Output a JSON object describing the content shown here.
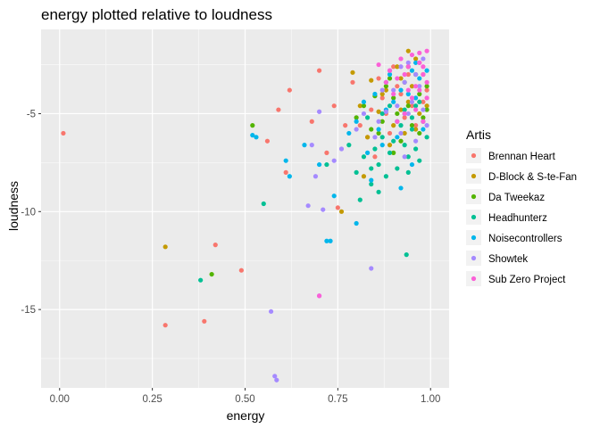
{
  "chart_data": {
    "type": "scatter",
    "title": "energy plotted relative to loudness",
    "xlabel": "energy",
    "ylabel": "loudness",
    "xlim": [
      -0.05,
      1.05
    ],
    "ylim": [
      -19.0,
      -0.7
    ],
    "x_ticks": [
      0.0,
      0.25,
      0.5,
      0.75,
      1.0
    ],
    "x_tick_labels": [
      "0.00",
      "0.25",
      "0.50",
      "0.75",
      "1.00"
    ],
    "y_ticks": [
      -15,
      -10,
      -5
    ],
    "y_tick_labels": [
      "-15",
      "-10",
      "-5"
    ],
    "grid": true,
    "legend": {
      "title": "Artis",
      "placement": "right"
    },
    "series": [
      {
        "name": "Brennan Heart",
        "color": "#F8766D",
        "points": [
          [
            0.01,
            -6.0
          ],
          [
            0.285,
            -15.8
          ],
          [
            0.39,
            -15.6
          ],
          [
            0.42,
            -11.7
          ],
          [
            0.49,
            -13.0
          ],
          [
            0.59,
            -4.8
          ],
          [
            0.62,
            -3.8
          ],
          [
            0.56,
            -6.4
          ],
          [
            0.61,
            -8.0
          ],
          [
            0.7,
            -2.8
          ],
          [
            0.75,
            -9.8
          ],
          [
            0.72,
            -7.0
          ],
          [
            0.79,
            -3.4
          ],
          [
            0.81,
            -5.6
          ],
          [
            0.84,
            -4.8
          ],
          [
            0.86,
            -3.2
          ],
          [
            0.88,
            -5.0
          ],
          [
            0.9,
            -2.6
          ],
          [
            0.92,
            -4.0
          ],
          [
            0.94,
            -3.0
          ],
          [
            0.96,
            -5.6
          ],
          [
            0.97,
            -2.4
          ],
          [
            0.98,
            -4.4
          ],
          [
            0.83,
            -6.2
          ],
          [
            0.91,
            -3.6
          ],
          [
            0.93,
            -5.2
          ],
          [
            0.95,
            -4.6
          ],
          [
            0.77,
            -5.6
          ],
          [
            0.85,
            -7.2
          ],
          [
            0.87,
            -4.2
          ],
          [
            0.89,
            -6.0
          ],
          [
            0.99,
            -3.8
          ],
          [
            0.74,
            -4.6
          ],
          [
            0.68,
            -5.4
          ]
        ]
      },
      {
        "name": "D-Block & S-te-Fan",
        "color": "#C49A00",
        "points": [
          [
            0.285,
            -11.8
          ],
          [
            0.76,
            -10.0
          ],
          [
            0.79,
            -2.9
          ],
          [
            0.82,
            -8.2
          ],
          [
            0.84,
            -3.3
          ],
          [
            0.86,
            -4.9
          ],
          [
            0.88,
            -3.8
          ],
          [
            0.9,
            -5.6
          ],
          [
            0.92,
            -3.2
          ],
          [
            0.94,
            -4.4
          ],
          [
            0.96,
            -5.8
          ],
          [
            0.98,
            -3.0
          ],
          [
            0.99,
            -4.6
          ],
          [
            0.89,
            -6.6
          ],
          [
            0.91,
            -2.6
          ],
          [
            0.93,
            -6.0
          ],
          [
            0.95,
            -3.6
          ],
          [
            0.97,
            -5.0
          ],
          [
            0.87,
            -4.0
          ],
          [
            0.94,
            -1.8
          ],
          [
            0.81,
            -4.6
          ],
          [
            0.83,
            -6.2
          ],
          [
            0.96,
            -2.2
          ],
          [
            0.92,
            -4.8
          ]
        ]
      },
      {
        "name": "Da Tweekaz",
        "color": "#53B400",
        "points": [
          [
            0.41,
            -13.2
          ],
          [
            0.52,
            -5.6
          ],
          [
            0.8,
            -5.2
          ],
          [
            0.82,
            -4.6
          ],
          [
            0.85,
            -4.1
          ],
          [
            0.87,
            -5.4
          ],
          [
            0.88,
            -3.6
          ],
          [
            0.9,
            -4.2
          ],
          [
            0.91,
            -5.0
          ],
          [
            0.93,
            -3.4
          ],
          [
            0.94,
            -4.6
          ],
          [
            0.95,
            -5.6
          ],
          [
            0.96,
            -3.0
          ],
          [
            0.97,
            -4.0
          ],
          [
            0.98,
            -5.2
          ],
          [
            0.99,
            -3.6
          ],
          [
            0.86,
            -6.0
          ],
          [
            0.89,
            -3.2
          ],
          [
            0.92,
            -6.4
          ],
          [
            0.94,
            -2.6
          ],
          [
            0.97,
            -6.0
          ],
          [
            0.99,
            -4.8
          ],
          [
            0.84,
            -5.8
          ],
          [
            0.9,
            -7.0
          ]
        ]
      },
      {
        "name": "Headhunterz",
        "color": "#00C094",
        "points": [
          [
            0.38,
            -13.5
          ],
          [
            0.55,
            -9.6
          ],
          [
            0.72,
            -7.6
          ],
          [
            0.78,
            -6.6
          ],
          [
            0.8,
            -8.0
          ],
          [
            0.82,
            -7.2
          ],
          [
            0.84,
            -8.6
          ],
          [
            0.85,
            -6.8
          ],
          [
            0.86,
            -7.6
          ],
          [
            0.87,
            -6.2
          ],
          [
            0.88,
            -8.2
          ],
          [
            0.89,
            -7.0
          ],
          [
            0.9,
            -6.4
          ],
          [
            0.91,
            -7.8
          ],
          [
            0.92,
            -5.6
          ],
          [
            0.93,
            -6.6
          ],
          [
            0.94,
            -8.0
          ],
          [
            0.95,
            -5.8
          ],
          [
            0.96,
            -6.8
          ],
          [
            0.97,
            -7.4
          ],
          [
            0.98,
            -5.4
          ],
          [
            0.99,
            -6.2
          ],
          [
            0.935,
            -12.2
          ],
          [
            0.83,
            -5.2
          ],
          [
            0.87,
            -5.0
          ],
          [
            0.89,
            -4.6
          ],
          [
            0.91,
            -5.4
          ],
          [
            0.93,
            -4.8
          ],
          [
            0.95,
            -5.2
          ],
          [
            0.97,
            -4.4
          ],
          [
            0.86,
            -9.0
          ],
          [
            0.81,
            -9.4
          ],
          [
            0.84,
            -7.8
          ],
          [
            0.94,
            -7.2
          ],
          [
            0.96,
            -4.6
          ]
        ]
      },
      {
        "name": "Noisecontrollers",
        "color": "#00B6EB",
        "points": [
          [
            0.52,
            -6.1
          ],
          [
            0.53,
            -6.2
          ],
          [
            0.61,
            -7.4
          ],
          [
            0.62,
            -8.2
          ],
          [
            0.72,
            -11.5
          ],
          [
            0.73,
            -11.5
          ],
          [
            0.8,
            -10.6
          ],
          [
            0.84,
            -8.4
          ],
          [
            0.66,
            -6.6
          ],
          [
            0.7,
            -7.6
          ],
          [
            0.78,
            -6.0
          ],
          [
            0.8,
            -5.4
          ],
          [
            0.82,
            -4.4
          ],
          [
            0.83,
            -7.0
          ],
          [
            0.85,
            -4.0
          ],
          [
            0.86,
            -5.8
          ],
          [
            0.88,
            -4.8
          ],
          [
            0.89,
            -3.0
          ],
          [
            0.9,
            -4.4
          ],
          [
            0.91,
            -6.2
          ],
          [
            0.92,
            -3.8
          ],
          [
            0.93,
            -5.0
          ],
          [
            0.94,
            -4.0
          ],
          [
            0.95,
            -2.8
          ],
          [
            0.96,
            -4.2
          ],
          [
            0.97,
            -3.2
          ],
          [
            0.98,
            -5.8
          ],
          [
            0.99,
            -2.8
          ],
          [
            0.87,
            -6.6
          ],
          [
            0.74,
            -9.2
          ],
          [
            0.92,
            -8.8
          ],
          [
            0.95,
            -7.6
          ],
          [
            0.88,
            -3.4
          ],
          [
            0.96,
            -2.4
          ]
        ]
      },
      {
        "name": "Showtek",
        "color": "#A58AFF",
        "points": [
          [
            0.57,
            -15.1
          ],
          [
            0.58,
            -18.4
          ],
          [
            0.585,
            -18.6
          ],
          [
            0.67,
            -9.7
          ],
          [
            0.69,
            -8.2
          ],
          [
            0.7,
            -14.3
          ],
          [
            0.71,
            -9.9
          ],
          [
            0.7,
            -4.9
          ],
          [
            0.74,
            -7.4
          ],
          [
            0.76,
            -6.8
          ],
          [
            0.8,
            -5.8
          ],
          [
            0.84,
            -12.9
          ],
          [
            0.88,
            -4.9
          ],
          [
            0.86,
            -5.4
          ],
          [
            0.9,
            -3.8
          ],
          [
            0.91,
            -4.6
          ],
          [
            0.92,
            -6.0
          ],
          [
            0.93,
            -3.4
          ],
          [
            0.94,
            -5.0
          ],
          [
            0.95,
            -4.4
          ],
          [
            0.96,
            -6.4
          ],
          [
            0.97,
            -3.6
          ],
          [
            0.98,
            -4.8
          ],
          [
            0.99,
            -5.6
          ],
          [
            0.89,
            -2.8
          ],
          [
            0.92,
            -2.6
          ],
          [
            0.94,
            -2.4
          ],
          [
            0.82,
            -5.0
          ],
          [
            0.85,
            -6.2
          ],
          [
            0.87,
            -3.8
          ],
          [
            0.96,
            -3.0
          ],
          [
            0.98,
            -2.2
          ],
          [
            0.68,
            -6.6
          ],
          [
            0.93,
            -7.2
          ]
        ]
      },
      {
        "name": "Sub Zero Project",
        "color": "#FB61D7",
        "points": [
          [
            0.7,
            -14.3
          ],
          [
            0.86,
            -2.5
          ],
          [
            0.88,
            -3.4
          ],
          [
            0.89,
            -2.8
          ],
          [
            0.9,
            -4.0
          ],
          [
            0.91,
            -3.2
          ],
          [
            0.92,
            -2.2
          ],
          [
            0.93,
            -3.0
          ],
          [
            0.94,
            -2.6
          ],
          [
            0.95,
            -2.0
          ],
          [
            0.96,
            -3.6
          ],
          [
            0.97,
            -2.4
          ],
          [
            0.98,
            -3.0
          ],
          [
            0.99,
            -1.8
          ],
          [
            0.95,
            -4.2
          ],
          [
            0.97,
            -3.8
          ],
          [
            0.99,
            -4.2
          ],
          [
            0.93,
            -5.0
          ],
          [
            0.96,
            -4.8
          ],
          [
            0.98,
            -5.4
          ],
          [
            0.91,
            -5.4
          ],
          [
            0.99,
            -3.4
          ],
          [
            0.94,
            -3.8
          ],
          [
            0.98,
            -2.6
          ],
          [
            0.97,
            -1.9
          ]
        ]
      }
    ]
  }
}
